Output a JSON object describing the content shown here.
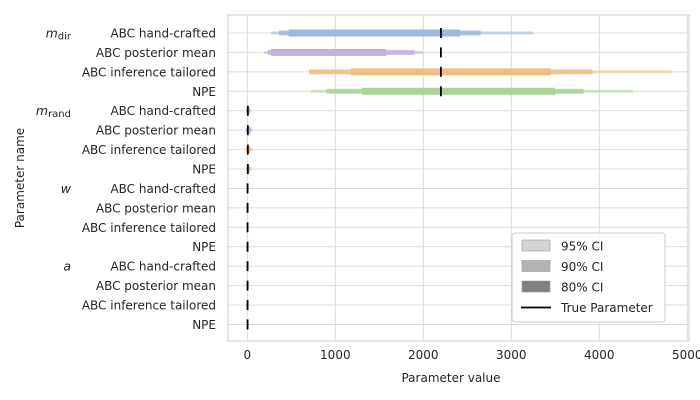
{
  "chart_data": {
    "type": "interval",
    "xlabel": "Parameter value",
    "ylabel": "Parameter name",
    "xlim": [
      -220,
      5020
    ],
    "xticks": [
      0,
      1000,
      2000,
      3000,
      4000,
      5000
    ],
    "grid": true,
    "legend_position": "lower-right",
    "legend": [
      {
        "label": "95% CI",
        "kind": "band",
        "opacity": 0.35
      },
      {
        "label": "90% CI",
        "kind": "band",
        "opacity": 0.55
      },
      {
        "label": "80% CI",
        "kind": "band",
        "opacity": 1.0
      },
      {
        "label": "True Parameter",
        "kind": "line"
      }
    ],
    "methods": [
      "ABC hand-crafted",
      "ABC posterior mean",
      "ABC inference tailored",
      "NPE"
    ],
    "method_colors": [
      "#9db8dd",
      "#c4b2d8",
      "#f2bd84",
      "#a9d39a"
    ],
    "truth_color": "#000000",
    "groups": [
      {
        "label_main": "m",
        "label_sub": "dir",
        "rows": [
          {
            "method": "ABC hand-crafted",
            "ci95": [
              270,
              3250
            ],
            "ci90": [
              360,
              2650
            ],
            "ci80": [
              470,
              2420
            ],
            "truth": 2200
          },
          {
            "method": "ABC posterior mean",
            "ci95": [
              190,
              2000
            ],
            "ci90": [
              230,
              1900
            ],
            "ci80": [
              270,
              1580
            ],
            "truth": 2200
          },
          {
            "method": "ABC inference tailored",
            "ci95": [
              700,
              4820
            ],
            "ci90": [
              700,
              3920
            ],
            "ci80": [
              1180,
              3450
            ],
            "truth": 2200
          },
          {
            "method": "NPE",
            "ci95": [
              720,
              4380
            ],
            "ci90": [
              900,
              3820
            ],
            "ci80": [
              1300,
              3500
            ],
            "truth": 2200
          }
        ]
      },
      {
        "label_main": "m",
        "label_sub": "rand",
        "rows": [
          {
            "method": "ABC hand-crafted",
            "ci95": [
              -15,
              40
            ],
            "ci90": [
              -10,
              30
            ],
            "ci80": [
              -6,
              22
            ],
            "truth": 5
          },
          {
            "method": "ABC posterior mean",
            "ci95": [
              -15,
              55
            ],
            "ci90": [
              -10,
              45
            ],
            "ci80": [
              -5,
              35
            ],
            "truth": 5
          },
          {
            "method": "ABC inference tailored",
            "ci95": [
              -20,
              50
            ],
            "ci90": [
              -15,
              40
            ],
            "ci80": [
              -10,
              30
            ],
            "truth": 5
          },
          {
            "method": "NPE",
            "ci95": [
              -15,
              45
            ],
            "ci90": [
              -10,
              35
            ],
            "ci80": [
              -5,
              25
            ],
            "truth": 5
          }
        ]
      },
      {
        "label_main": "w",
        "label_sub": "",
        "rows": [
          {
            "method": "ABC hand-crafted",
            "ci95": [
              -8,
              18
            ],
            "ci90": [
              -6,
              14
            ],
            "ci80": [
              -4,
              10
            ],
            "truth": 2
          },
          {
            "method": "ABC posterior mean",
            "ci95": [
              -6,
              14
            ],
            "ci90": [
              -4,
              10
            ],
            "ci80": [
              -3,
              8
            ],
            "truth": 2
          },
          {
            "method": "ABC inference tailored",
            "ci95": [
              -8,
              16
            ],
            "ci90": [
              -6,
              12
            ],
            "ci80": [
              -4,
              9
            ],
            "truth": 2
          },
          {
            "method": "NPE",
            "ci95": [
              -6,
              14
            ],
            "ci90": [
              -4,
              10
            ],
            "ci80": [
              -3,
              8
            ],
            "truth": 2
          }
        ]
      },
      {
        "label_main": "a",
        "label_sub": "",
        "rows": [
          {
            "method": "ABC hand-crafted",
            "ci95": [
              -6,
              14
            ],
            "ci90": [
              -4,
              10
            ],
            "ci80": [
              -3,
              8
            ],
            "truth": 2
          },
          {
            "method": "ABC posterior mean",
            "ci95": [
              -5,
              12
            ],
            "ci90": [
              -4,
              9
            ],
            "ci80": [
              -2,
              7
            ],
            "truth": 2
          },
          {
            "method": "ABC inference tailored",
            "ci95": [
              -6,
              14
            ],
            "ci90": [
              -4,
              10
            ],
            "ci80": [
              -3,
              8
            ],
            "truth": 2
          },
          {
            "method": "NPE",
            "ci95": [
              -5,
              12
            ],
            "ci90": [
              -4,
              9
            ],
            "ci80": [
              -2,
              7
            ],
            "truth": 2
          }
        ]
      }
    ]
  }
}
